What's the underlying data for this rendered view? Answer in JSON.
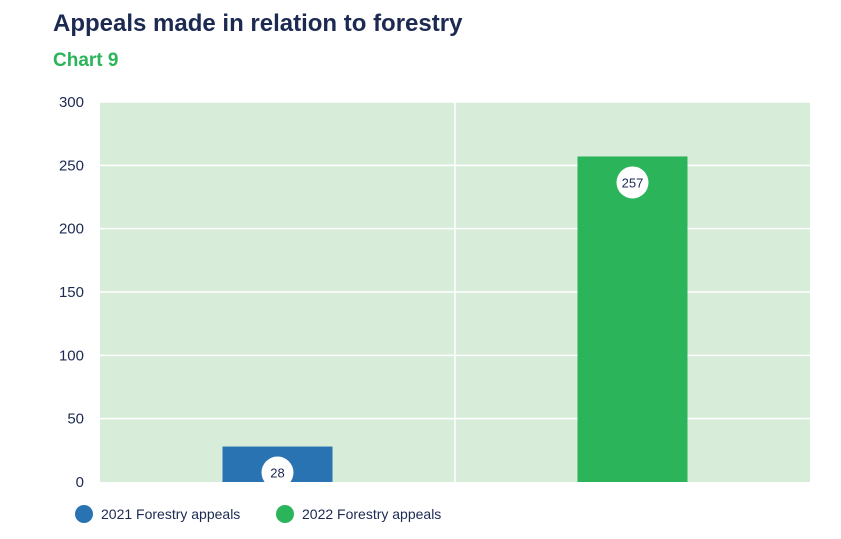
{
  "header": {
    "title": "Appeals made in relation to forestry",
    "subtitle": "Chart 9"
  },
  "colors": {
    "plot_background": "#d7ecd9",
    "grid": "#ffffff",
    "series_2021": "#2a73b2",
    "series_2022": "#2bb45a",
    "text": "#1c2a52"
  },
  "chart_data": {
    "type": "bar",
    "title": "Appeals made in relation to forestry",
    "subtitle": "Chart 9",
    "categories": [
      "2021 Forestry appeals",
      "2022 Forestry appeals"
    ],
    "values": [
      28,
      257
    ],
    "data_labels": [
      "28",
      "257"
    ],
    "ylim": [
      0,
      300
    ],
    "yticks": [
      0,
      50,
      100,
      150,
      200,
      250,
      300
    ],
    "xlabel": "",
    "ylabel": "",
    "grid": true,
    "legend": {
      "placement": "bottom-left",
      "entries": [
        "2021 Forestry appeals",
        "2022 Forestry appeals"
      ]
    }
  }
}
